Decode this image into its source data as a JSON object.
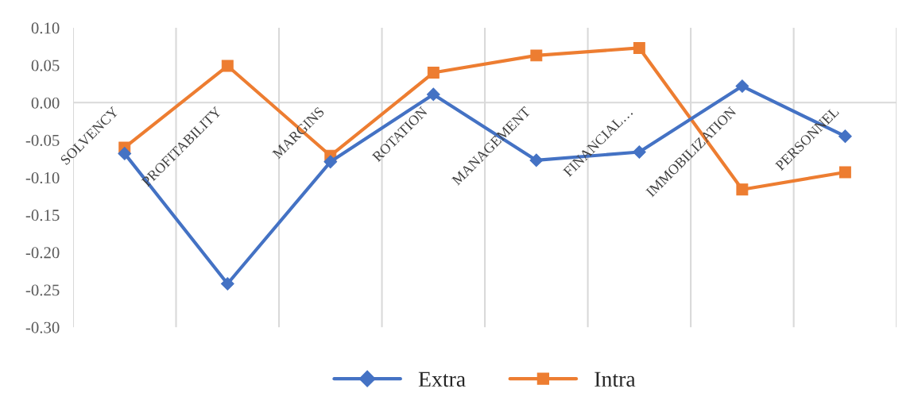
{
  "chart_data": {
    "type": "line",
    "categories": [
      "SOLVENCY",
      "PROFITABILITY",
      "MARGINS",
      "ROTATION",
      "MANAGEMENT",
      "FINANCIAL…",
      "IMMOBILIZATION",
      "PERSONNEL"
    ],
    "series": [
      {
        "name": "Extra",
        "color": "#4472c4",
        "marker": "diamond",
        "values": [
          -0.068,
          -0.242,
          -0.079,
          0.011,
          -0.077,
          -0.066,
          0.022,
          -0.045
        ]
      },
      {
        "name": "Intra",
        "color": "#ed7d31",
        "marker": "square",
        "values": [
          -0.06,
          0.049,
          -0.071,
          0.04,
          0.063,
          0.073,
          -0.116,
          -0.093
        ]
      }
    ],
    "ylim": [
      -0.3,
      0.1
    ],
    "yticks": [
      {
        "value": -0.3,
        "label": "-0.30"
      },
      {
        "value": -0.25,
        "label": "-0.25"
      },
      {
        "value": -0.2,
        "label": "-0.20"
      },
      {
        "value": -0.15,
        "label": "-0.15"
      },
      {
        "value": -0.1,
        "label": "-0.10"
      },
      {
        "value": -0.05,
        "label": "-0.05"
      },
      {
        "value": 0,
        "label": "0.00"
      },
      {
        "value": 0.05,
        "label": "0.05"
      },
      {
        "value": 0.1,
        "label": "0.10"
      }
    ],
    "grid": "x",
    "legend": "bottom"
  }
}
